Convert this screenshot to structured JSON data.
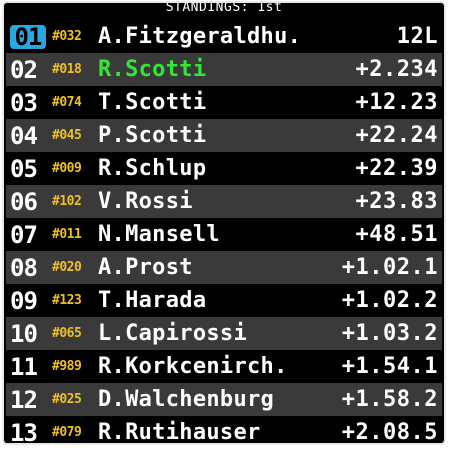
{
  "title": "STANDINGS: 1st",
  "standings": [
    {
      "pos": "01",
      "number": "#032",
      "name": "A.Fitzgeraldhu.",
      "gap": "12L",
      "leader": true,
      "highlight": false
    },
    {
      "pos": "02",
      "number": "#018",
      "name": "R.Scotti",
      "gap": "+2.234",
      "leader": false,
      "highlight": true
    },
    {
      "pos": "03",
      "number": "#074",
      "name": "T.Scotti",
      "gap": "+12.23",
      "leader": false,
      "highlight": false
    },
    {
      "pos": "04",
      "number": "#045",
      "name": "P.Scotti",
      "gap": "+22.24",
      "leader": false,
      "highlight": false
    },
    {
      "pos": "05",
      "number": "#009",
      "name": "R.Schlup",
      "gap": "+22.39",
      "leader": false,
      "highlight": false
    },
    {
      "pos": "06",
      "number": "#102",
      "name": "V.Rossi",
      "gap": "+23.83",
      "leader": false,
      "highlight": false
    },
    {
      "pos": "07",
      "number": "#011",
      "name": "N.Mansell",
      "gap": "+48.51",
      "leader": false,
      "highlight": false
    },
    {
      "pos": "08",
      "number": "#020",
      "name": "A.Prost",
      "gap": "+1.02.1",
      "leader": false,
      "highlight": false
    },
    {
      "pos": "09",
      "number": "#123",
      "name": "T.Harada",
      "gap": "+1.02.2",
      "leader": false,
      "highlight": false
    },
    {
      "pos": "10",
      "number": "#065",
      "name": "L.Capirossi",
      "gap": "+1.03.2",
      "leader": false,
      "highlight": false
    },
    {
      "pos": "11",
      "number": "#989",
      "name": "R.Korkcenirch.",
      "gap": "+1.54.1",
      "leader": false,
      "highlight": false
    },
    {
      "pos": "12",
      "number": "#025",
      "name": "D.Walchenburg",
      "gap": "+1.58.2",
      "leader": false,
      "highlight": false
    },
    {
      "pos": "13",
      "number": "#079",
      "name": "R.Rutihauser",
      "gap": "+2.08.5",
      "leader": false,
      "highlight": false
    }
  ],
  "colors": {
    "leader_badge": "#2aa7e0",
    "car_number": "#f0c020",
    "player_highlight": "#33e833",
    "row_alt": "#3a3a3a",
    "row_base": "#000000"
  }
}
